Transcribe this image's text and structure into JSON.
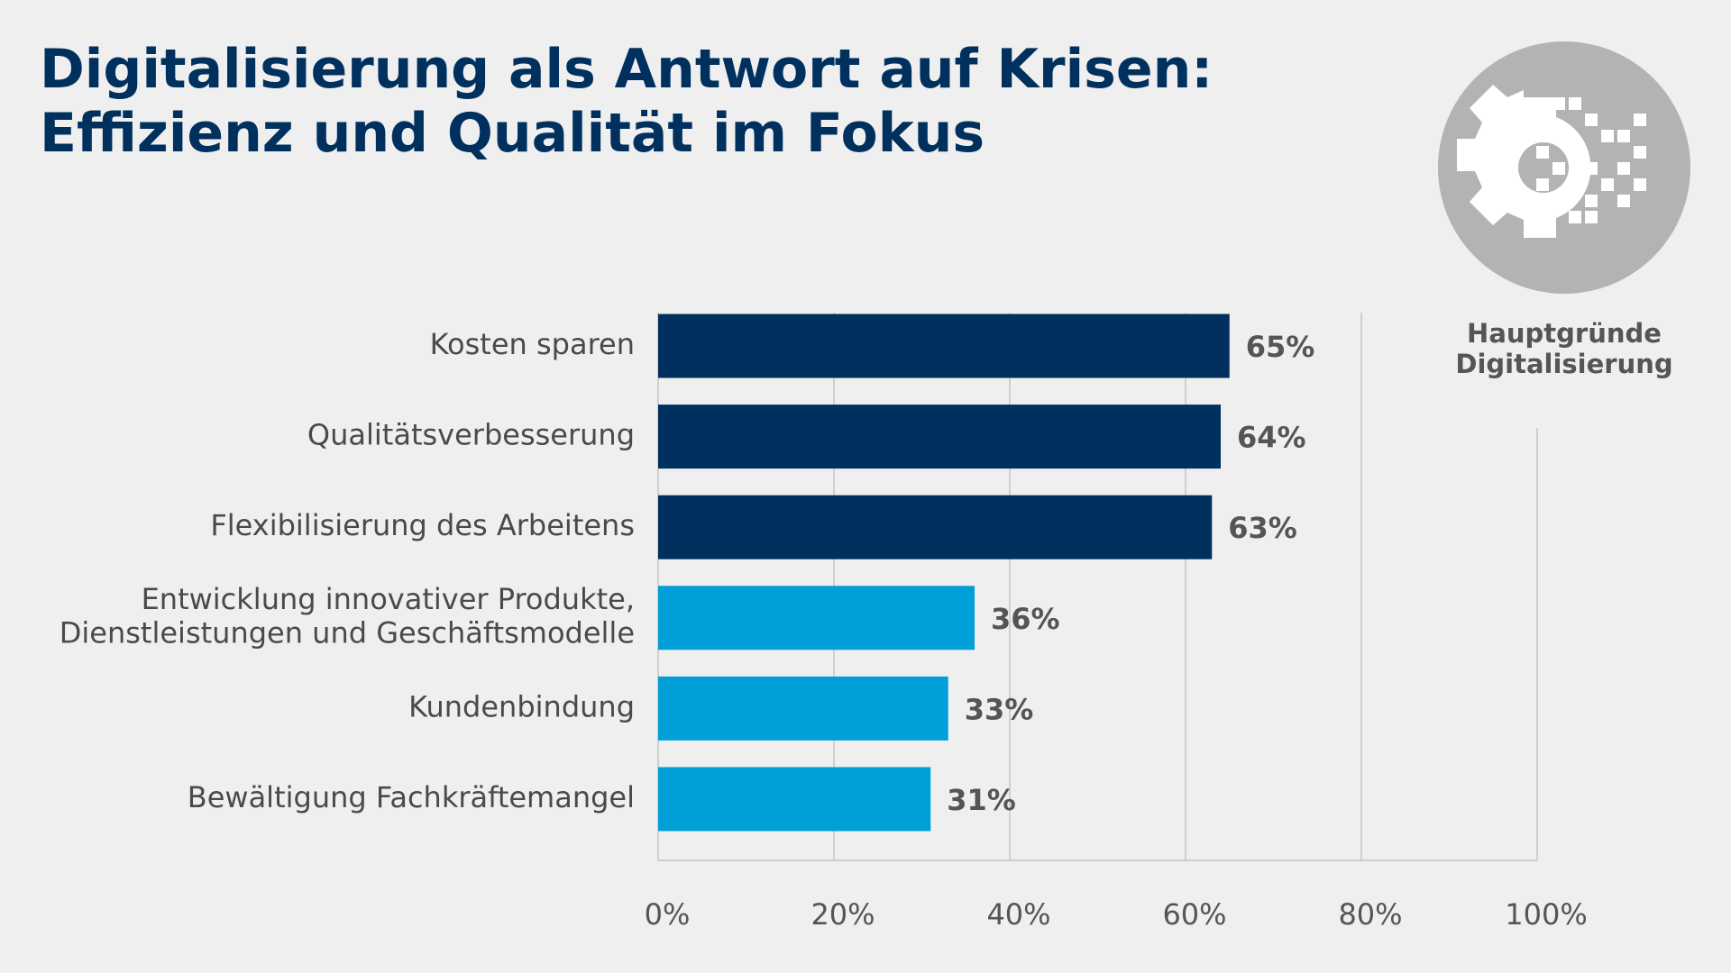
{
  "chart_data": {
    "type": "hbar",
    "title": "Digitalisierung als Antwort auf Krisen:\nEffizienz und Qualität im Fokus",
    "annotation": "Hauptgründe\nDigitalisierung",
    "categories": [
      "Kosten sparen",
      "Qualitätsverbesserung",
      "Flexibilisierung des Arbeitens",
      "Entwicklung innovativer Produkte,\nDienstleistungen und Geschäftsmodelle",
      "Kundenbindung",
      "Bewältigung Fachkräftemangel"
    ],
    "values": [
      65,
      64,
      63,
      36,
      33,
      31
    ],
    "value_labels": [
      "65%",
      "64%",
      "63%",
      "36%",
      "33%",
      "31%"
    ],
    "colors": [
      "#00305e",
      "#00305e",
      "#00305e",
      "#009fd8",
      "#009fd8",
      "#009fd8"
    ],
    "xlim": [
      0,
      100
    ],
    "xticks": [
      {
        "value": 0,
        "label": "0%"
      },
      {
        "value": 20,
        "label": "20%"
      },
      {
        "value": 40,
        "label": "40%"
      },
      {
        "value": 60,
        "label": "60%"
      },
      {
        "value": 80,
        "label": "80%"
      },
      {
        "value": 100,
        "label": "100%"
      }
    ],
    "grid": true
  }
}
